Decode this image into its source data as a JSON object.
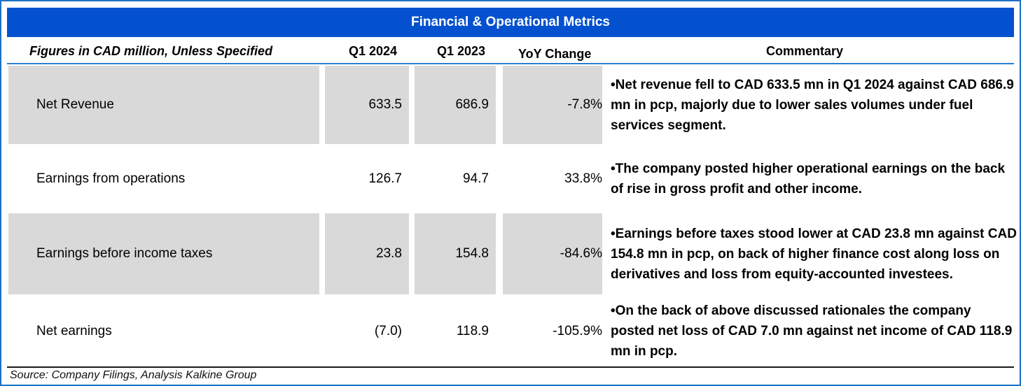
{
  "title": "Financial & Operational Metrics",
  "header": {
    "figures_note": "Figures in CAD million, Unless Specified",
    "col_q1_2024": "Q1 2024",
    "col_q1_2023": "Q1 2023",
    "col_yoy": "YoY Change",
    "col_commentary": "Commentary"
  },
  "rows": [
    {
      "metric": "Net Revenue",
      "q1_2024": "633.5",
      "q1_2023": "686.9",
      "yoy": "-7.8%",
      "commentary": "•Net revenue fell to CAD 633.5 mn in Q1 2024 against CAD 686.9 mn in pcp, majorly due to lower sales volumes under fuel services segment."
    },
    {
      "metric": "Earnings from operations",
      "q1_2024": "126.7",
      "q1_2023": "94.7",
      "yoy": "33.8%",
      "commentary": "•The company posted higher operational earnings on the back of rise in gross profit and other income."
    },
    {
      "metric": "Earnings before income taxes",
      "q1_2024": "23.8",
      "q1_2023": "154.8",
      "yoy": "-84.6%",
      "commentary": "•Earnings before taxes stood lower at CAD 23.8 mn against CAD 154.8 mn in pcp, on back of higher finance cost along loss on derivatives and loss from equity-accounted investees."
    },
    {
      "metric": "Net earnings",
      "q1_2024": "(7.0)",
      "q1_2023": "118.9",
      "yoy": "-105.9%",
      "commentary": "•On the back of above discussed rationales the company posted net loss of CAD 7.0 mn against net income of CAD 118.9 mn in pcp."
    }
  ],
  "source": "Source: Company Filings, Analysis Kalkine Group",
  "colors": {
    "title_bg": "#0451cf",
    "frame_border": "#1a72c4",
    "shaded_cell": "#d9d9d9"
  }
}
